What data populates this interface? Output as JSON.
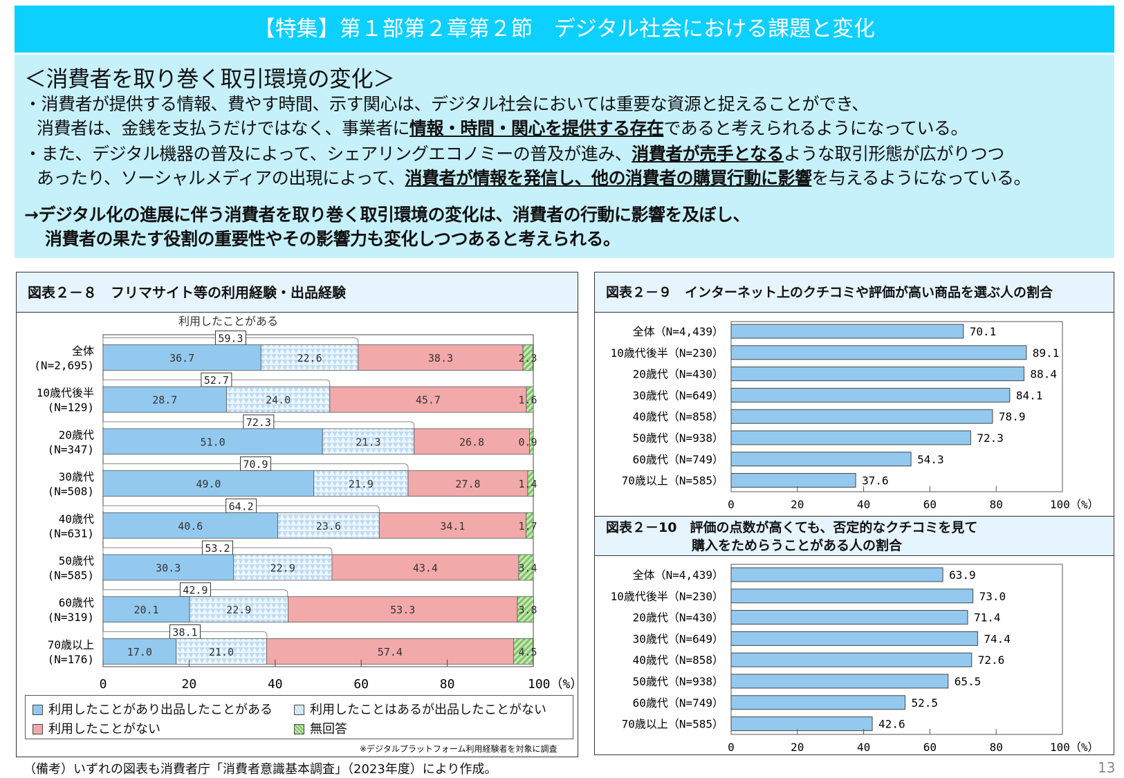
{
  "header": {
    "title": "【特集】第１部第２章第２節　デジタル社会における課題と変化"
  },
  "intro": {
    "heading": "＜消費者を取り巻く取引環境の変化＞",
    "p1a": "・消費者が提供する情報、費やす時間、示す関心は、デジタル社会においては重要な資源と捉えることができ、",
    "p1b_pre": "消費者は、金銭を支払うだけではなく、事業者に",
    "p1b_u": "情報・時間・関心を提供する存在",
    "p1b_post": "であると考えられるようになっている。",
    "p2a_pre": "・また、デジタル機器の普及によって、シェアリングエコノミーの普及が進み、",
    "p2a_u": "消費者が売手となる",
    "p2a_post": "ような取引形態が広がりつつ",
    "p2b_pre": "あったり、ソーシャルメディアの出現によって、",
    "p2b_u": "消費者が情報を発信し、他の消費者の購買行動に影響",
    "p2b_post": "を与えるようになっている。",
    "c1": "→デジタル化の進展に伴う消費者を取り巻く取引環境の変化は、消費者の行動に影響を及ぼし、",
    "c2": "消費者の果たす役割の重要性やその影響力も変化しつつあると考えられる。"
  },
  "chart_data": [
    {
      "type": "bar",
      "stacked": true,
      "title": "図表２－８　フリマサイト等の利用経験・出品経験",
      "bracket_label": "利用したことがある",
      "categories": [
        "全体\n(N=2,695)",
        "10歳代後半\n(N=129)",
        "20歳代\n(N=347)",
        "30歳代\n(N=508)",
        "40歳代\n(N=631)",
        "50歳代\n(N=585)",
        "60歳代\n(N=319)",
        "70歳以上\n(N=176)"
      ],
      "series": [
        {
          "name": "利用したことがあり出品したことがある",
          "color": "#93c9ef",
          "values": [
            36.7,
            28.7,
            51.0,
            49.0,
            40.6,
            30.3,
            20.1,
            17.0
          ]
        },
        {
          "name": "利用したことはあるが出品したことがない",
          "color": "#e3f1fc",
          "values": [
            22.6,
            24.0,
            21.3,
            21.9,
            23.6,
            22.9,
            22.9,
            21.0
          ]
        },
        {
          "name": "利用したことがない",
          "color": "#f2a9aa",
          "values": [
            38.3,
            45.7,
            26.8,
            27.8,
            34.1,
            43.4,
            53.3,
            57.4
          ]
        },
        {
          "name": "無回答",
          "color": "#9fd48a",
          "values": [
            2.3,
            1.6,
            0.9,
            1.4,
            1.7,
            3.4,
            3.8,
            4.5
          ]
        }
      ],
      "used_totals": [
        59.3,
        52.7,
        72.3,
        70.9,
        64.2,
        53.2,
        42.9,
        38.1
      ],
      "xticks": [
        "0",
        "20",
        "40",
        "60",
        "80",
        "100（%）"
      ],
      "xlim": [
        0,
        100
      ],
      "note": "※デジタルプラットフォーム利用経験者を対象に調査"
    },
    {
      "type": "bar",
      "title": "図表２－９　インターネット上のクチコミや評価が高い商品を選ぶ人の割合",
      "categories": [
        "全体（N=4,439）",
        "10歳代後半（N=230）",
        "20歳代（N=430）",
        "30歳代（N=649）",
        "40歳代（N=858）",
        "50歳代（N=938）",
        "60歳代（N=749）",
        "70歳以上（N=585）"
      ],
      "values": [
        70.1,
        89.1,
        88.4,
        84.1,
        78.9,
        72.3,
        54.3,
        37.6
      ],
      "color": "#93c9ef",
      "xticks": [
        "0",
        "20",
        "40",
        "60",
        "80",
        "100（%）"
      ],
      "xlim": [
        0,
        100
      ]
    },
    {
      "type": "bar",
      "title_line1": "図表２－10　評価の点数が高くても、否定的なクチコミを見て",
      "title_line2": "購入をためらうことがある人の割合",
      "categories": [
        "全体（N=4,439）",
        "10歳代後半（N=230）",
        "20歳代（N=430）",
        "30歳代（N=649）",
        "40歳代（N=858）",
        "50歳代（N=938）",
        "60歳代（N=749）",
        "70歳以上（N=585）"
      ],
      "values": [
        63.9,
        73.0,
        71.4,
        74.4,
        72.6,
        65.5,
        52.5,
        42.6
      ],
      "color": "#93c9ef",
      "xticks": [
        "0",
        "20",
        "40",
        "60",
        "80",
        "100（%）"
      ],
      "xlim": [
        0,
        100
      ]
    }
  ],
  "footer": {
    "source": "（備考）いずれの図表も消費者庁「消費者意識基本調査」（2023年度）により作成。",
    "page": "13"
  }
}
